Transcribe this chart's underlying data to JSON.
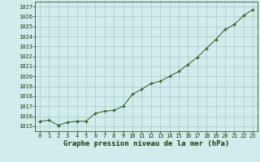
{
  "x": [
    0,
    1,
    2,
    3,
    4,
    5,
    6,
    7,
    8,
    9,
    10,
    11,
    12,
    13,
    14,
    15,
    16,
    17,
    18,
    19,
    20,
    21,
    22,
    23
  ],
  "y": [
    1015.5,
    1015.6,
    1015.1,
    1015.4,
    1015.5,
    1015.5,
    1016.3,
    1016.5,
    1016.6,
    1017.0,
    1018.2,
    1018.7,
    1019.3,
    1019.5,
    1020.0,
    1020.5,
    1021.2,
    1021.9,
    1022.8,
    1023.7,
    1024.7,
    1025.2,
    1026.1,
    1026.7
  ],
  "ylim": [
    1014.5,
    1027.5
  ],
  "yticks": [
    1015,
    1016,
    1017,
    1018,
    1019,
    1020,
    1021,
    1022,
    1023,
    1024,
    1025,
    1026,
    1027
  ],
  "xticks": [
    0,
    1,
    2,
    3,
    4,
    5,
    6,
    7,
    8,
    9,
    10,
    11,
    12,
    13,
    14,
    15,
    16,
    17,
    18,
    19,
    20,
    21,
    22,
    23
  ],
  "line_color": "#2d5a1b",
  "marker_color": "#2d5a1b",
  "bg_color": "#d0ecec",
  "grid_color": "#a8c8c8",
  "xlabel": "Graphe pression niveau de la mer (hPa)",
  "xlabel_fontsize": 6.5,
  "tick_fontsize": 5.0,
  "label_fontcolor": "#1a3a0a"
}
